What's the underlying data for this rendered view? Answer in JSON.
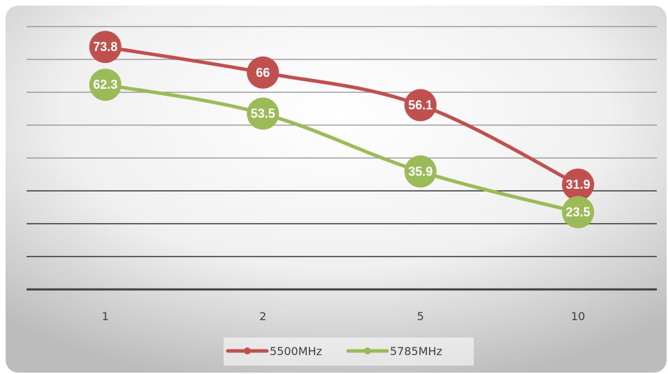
{
  "chart_data": {
    "type": "line",
    "categories": [
      "1",
      "2",
      "5",
      "10"
    ],
    "series": [
      {
        "name": "5500MHz",
        "color": "#C0504D",
        "values": [
          73.8,
          66,
          56.1,
          31.9
        ]
      },
      {
        "name": "5785MHz",
        "color": "#9BBB59",
        "values": [
          62.3,
          53.5,
          35.9,
          23.5
        ]
      }
    ],
    "ylim": [
      0,
      80
    ],
    "y_gridline_step": 10,
    "y_tick_labels_shown": false,
    "grid": true,
    "legend": "bottom",
    "data_labels": true,
    "title": "",
    "xlabel": "",
    "ylabel": ""
  }
}
